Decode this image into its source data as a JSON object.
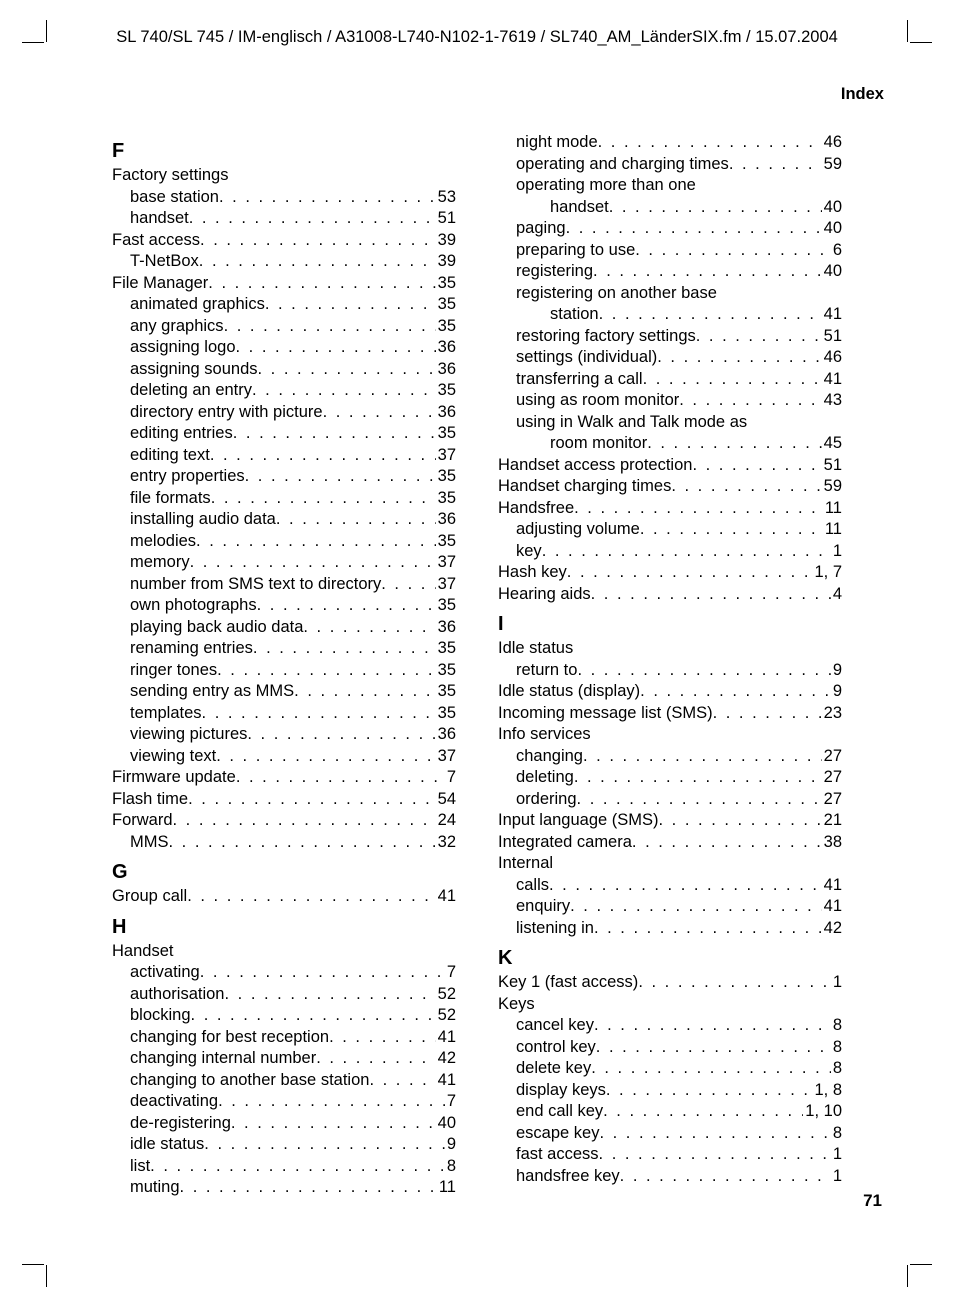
{
  "running_head": "SL 740/SL 745 / IM-englisch / A31008-L740-N102-1-7619 / SL740_AM_LänderSIX.fm / 15.07.2004",
  "section_label": "Index",
  "page_number": "71",
  "left_column": [
    {
      "type": "letter",
      "text": "F"
    },
    {
      "type": "entry",
      "term": "Factory settings",
      "page": null
    },
    {
      "type": "sub",
      "term": "base station",
      "page": "53"
    },
    {
      "type": "sub",
      "term": "handset",
      "page": "51"
    },
    {
      "type": "entry",
      "term": "Fast access",
      "page": "39"
    },
    {
      "type": "sub",
      "term": "T-NetBox",
      "page": "39"
    },
    {
      "type": "entry",
      "term": "File Manager",
      "page": "35"
    },
    {
      "type": "sub",
      "term": "animated graphics",
      "page": "35"
    },
    {
      "type": "sub",
      "term": "any graphics",
      "page": "35"
    },
    {
      "type": "sub",
      "term": "assigning logo",
      "page": "36"
    },
    {
      "type": "sub",
      "term": "assigning sounds",
      "page": "36"
    },
    {
      "type": "sub",
      "term": "deleting an entry",
      "page": "35"
    },
    {
      "type": "sub",
      "term": "directory entry with picture",
      "page": "36"
    },
    {
      "type": "sub",
      "term": "editing entries",
      "page": "35"
    },
    {
      "type": "sub",
      "term": "editing text",
      "page": "37"
    },
    {
      "type": "sub",
      "term": "entry properties",
      "page": "35"
    },
    {
      "type": "sub",
      "term": "file formats",
      "page": "35"
    },
    {
      "type": "sub",
      "term": "installing audio data",
      "page": "36"
    },
    {
      "type": "sub",
      "term": "melodies",
      "page": "35"
    },
    {
      "type": "sub",
      "term": "memory",
      "page": "37"
    },
    {
      "type": "sub",
      "term": "number from SMS text to directory",
      "page": "37"
    },
    {
      "type": "sub",
      "term": "own photographs",
      "page": "35"
    },
    {
      "type": "sub",
      "term": "playing back audio data",
      "page": "36"
    },
    {
      "type": "sub",
      "term": "renaming entries",
      "page": "35"
    },
    {
      "type": "sub",
      "term": "ringer tones",
      "page": "35"
    },
    {
      "type": "sub",
      "term": "sending entry as MMS",
      "page": "35"
    },
    {
      "type": "sub",
      "term": "templates",
      "page": "35"
    },
    {
      "type": "sub",
      "term": "viewing pictures",
      "page": "36"
    },
    {
      "type": "sub",
      "term": "viewing text",
      "page": "37"
    },
    {
      "type": "entry",
      "term": "Firmware update",
      "page": "7"
    },
    {
      "type": "entry",
      "term": "Flash time",
      "page": "54"
    },
    {
      "type": "entry",
      "term": "Forward",
      "page": "24"
    },
    {
      "type": "sub",
      "term": "MMS",
      "page": "32"
    },
    {
      "type": "letter",
      "text": "G"
    },
    {
      "type": "entry",
      "term": "Group call",
      "page": "41"
    },
    {
      "type": "letter",
      "text": "H"
    },
    {
      "type": "entry",
      "term": "Handset",
      "page": null
    },
    {
      "type": "sub",
      "term": "activating",
      "page": "7"
    },
    {
      "type": "sub",
      "term": "authorisation",
      "page": "52"
    },
    {
      "type": "sub",
      "term": "blocking",
      "page": "52"
    },
    {
      "type": "sub",
      "term": "changing for best reception",
      "page": "41"
    },
    {
      "type": "sub",
      "term": "changing internal number",
      "page": "42"
    },
    {
      "type": "sub",
      "term": "changing to another base station",
      "page": "41"
    },
    {
      "type": "sub",
      "term": "deactivating",
      "page": "7"
    },
    {
      "type": "sub",
      "term": "de-registering",
      "page": "40"
    },
    {
      "type": "sub",
      "term": "idle status",
      "page": "9"
    },
    {
      "type": "sub",
      "term": "list",
      "page": "8"
    },
    {
      "type": "sub",
      "term": "muting",
      "page": "11"
    }
  ],
  "right_column": [
    {
      "type": "sub",
      "term": "night mode",
      "page": "46"
    },
    {
      "type": "sub",
      "term": "operating and charging times",
      "page": "59"
    },
    {
      "type": "sub",
      "term": "operating more than one",
      "page": null
    },
    {
      "type": "subsub",
      "term": "handset",
      "page": "40"
    },
    {
      "type": "sub",
      "term": "paging",
      "page": "40"
    },
    {
      "type": "sub",
      "term": "preparing to use",
      "page": " 6"
    },
    {
      "type": "sub",
      "term": "registering",
      "page": "40"
    },
    {
      "type": "sub",
      "term": "registering on another base",
      "page": null
    },
    {
      "type": "subsub",
      "term": "station",
      "page": "41"
    },
    {
      "type": "sub",
      "term": "restoring factory settings",
      "page": "51"
    },
    {
      "type": "sub",
      "term": "settings (individual)",
      "page": "46"
    },
    {
      "type": "sub",
      "term": "transferring a call",
      "page": "41"
    },
    {
      "type": "sub",
      "term": "using as room monitor",
      "page": "43"
    },
    {
      "type": "sub",
      "term": "using in Walk and Talk mode as",
      "page": null
    },
    {
      "type": "subsub",
      "term": "room monitor",
      "page": "45"
    },
    {
      "type": "entry",
      "term": "Handset access protection",
      "page": "51"
    },
    {
      "type": "entry",
      "term": "Handset charging times",
      "page": "59"
    },
    {
      "type": "entry",
      "term": "Handsfree",
      "page": "11"
    },
    {
      "type": "sub",
      "term": "adjusting volume",
      "page": "11"
    },
    {
      "type": "sub",
      "term": "key",
      "page": " 1"
    },
    {
      "type": "entry",
      "term": "Hash key",
      "page": "1, 7"
    },
    {
      "type": "entry",
      "term": "Hearing aids",
      "page": " 4"
    },
    {
      "type": "letter",
      "text": "I"
    },
    {
      "type": "entry",
      "term": "Idle status",
      "page": null
    },
    {
      "type": "sub",
      "term": "return to",
      "page": " 9"
    },
    {
      "type": "entry",
      "term": "Idle status (display)",
      "page": " 9"
    },
    {
      "type": "entry",
      "term": "Incoming message list (SMS)",
      "page": "23"
    },
    {
      "type": "entry",
      "term": "Info services",
      "page": null
    },
    {
      "type": "sub",
      "term": "changing",
      "page": "27"
    },
    {
      "type": "sub",
      "term": "deleting",
      "page": "27"
    },
    {
      "type": "sub",
      "term": "ordering",
      "page": "27"
    },
    {
      "type": "entry",
      "term": "Input language (SMS)",
      "page": "21"
    },
    {
      "type": "entry",
      "term": "Integrated camera",
      "page": "38"
    },
    {
      "type": "entry",
      "term": "Internal",
      "page": null
    },
    {
      "type": "sub",
      "term": "calls",
      "page": "41"
    },
    {
      "type": "sub",
      "term": "enquiry",
      "page": "41"
    },
    {
      "type": "sub",
      "term": "listening in",
      "page": "42"
    },
    {
      "type": "letter",
      "text": "K"
    },
    {
      "type": "entry",
      "term": "Key 1 (fast access)",
      "page": " 1"
    },
    {
      "type": "entry",
      "term": "Keys",
      "page": null
    },
    {
      "type": "sub",
      "term": "cancel key",
      "page": " 8"
    },
    {
      "type": "sub",
      "term": "control key",
      "page": " 8"
    },
    {
      "type": "sub",
      "term": "delete key",
      "page": " 8"
    },
    {
      "type": "sub",
      "term": "display keys",
      "page": "1, 8"
    },
    {
      "type": "sub",
      "term": "end call key",
      "page": "1, 10"
    },
    {
      "type": "sub",
      "term": "escape key",
      "page": " 8"
    },
    {
      "type": "sub",
      "term": "fast access",
      "page": " 1"
    },
    {
      "type": "sub",
      "term": "handsfree key",
      "page": " 1"
    }
  ]
}
